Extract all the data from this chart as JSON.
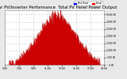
{
  "title": "Solar PV/Inverter Performance  Total PV Panel Power Output",
  "title_color": "#000000",
  "title_fontsize": 3.8,
  "bg_color": "#e8e8e8",
  "plot_bg_color": "#ffffff",
  "fill_color": "#cc0000",
  "line_color": "#aa0000",
  "grid_color": "#999999",
  "grid_style": ":",
  "y_right_labels": [
    "3500 W",
    "3000 W",
    "2500 W",
    "2000 W",
    "1500 W",
    "1000 W",
    " 500 W",
    "   0 W"
  ],
  "y_right_values": [
    3500,
    3000,
    2500,
    2000,
    1500,
    1000,
    500,
    0
  ],
  "ylim": [
    0,
    3800
  ],
  "xlim": [
    0,
    287
  ],
  "x_tick_positions": [
    0,
    41,
    83,
    124,
    165,
    206,
    247,
    287
  ],
  "x_tick_labels": [
    "5:00",
    "7:00",
    "9:00",
    "11:00",
    "13:00",
    "15:00",
    "17:00",
    "19:00"
  ],
  "legend_colors": [
    "#0000ff",
    "#ff0000"
  ],
  "legend_labels": [
    "Max Power",
    "Actual"
  ],
  "n_points": 288,
  "peak_value": 3450,
  "peak_index": 150,
  "bell_sigma": 55,
  "noise_scale": 120,
  "white_gap_indices": [
    130,
    131,
    132,
    133,
    134,
    145,
    146,
    147
  ],
  "white_gap_indices2": [
    155,
    156,
    157,
    158,
    159
  ],
  "seed": 12
}
